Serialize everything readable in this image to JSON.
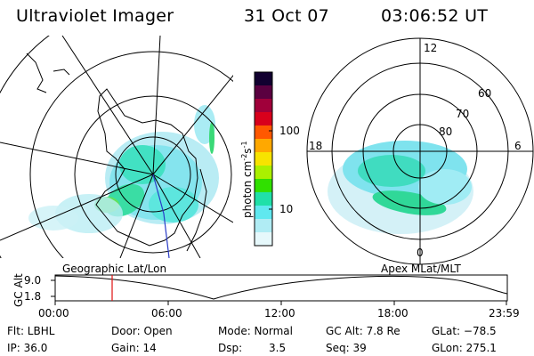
{
  "header": {
    "instrument": "Ultraviolet Imager",
    "date": "31 Oct 07",
    "time": "03:06:52 UT"
  },
  "colorbar": {
    "label": "photon cm",
    "exp1": "-2",
    "unit_s": "s",
    "exp2": "-1",
    "ticks": [
      "100",
      "10"
    ],
    "colors": [
      "#120030",
      "#5a0040",
      "#a0003a",
      "#d8001c",
      "#ff5800",
      "#ffa800",
      "#f7e300",
      "#aaf000",
      "#30e000",
      "#20e0a8",
      "#60e8ef",
      "#b0ecf4",
      "#e6f8fb"
    ]
  },
  "geo_panel": {
    "label": "Geographic Lat/Lon"
  },
  "polar_panel": {
    "label": "Apex  MLat/MLT",
    "mlt_labels": {
      "top": "12",
      "left": "18",
      "right": "6",
      "bottom": "0"
    },
    "lat_labels": [
      "60",
      "70",
      "80"
    ]
  },
  "altitude_plot": {
    "ylabel": "GC Alt",
    "yticks": [
      "9.0",
      "1.8"
    ],
    "xticks": [
      "00:00",
      "06:00",
      "12:00",
      "18:00",
      "23:59"
    ]
  },
  "status": {
    "flt": "Flt: LBHL",
    "door": "Door: Open",
    "mode": "Mode: Normal",
    "gcalt": "GC Alt: 7.8 Re",
    "glat": "GLat: −78.5",
    "ip": "IP: 36.0",
    "gain": "Gain: 14",
    "dsp_label": "Dsp:",
    "dsp_value": "3.5",
    "seq": "Seq: 39",
    "glon": "GLon: 275.1"
  }
}
